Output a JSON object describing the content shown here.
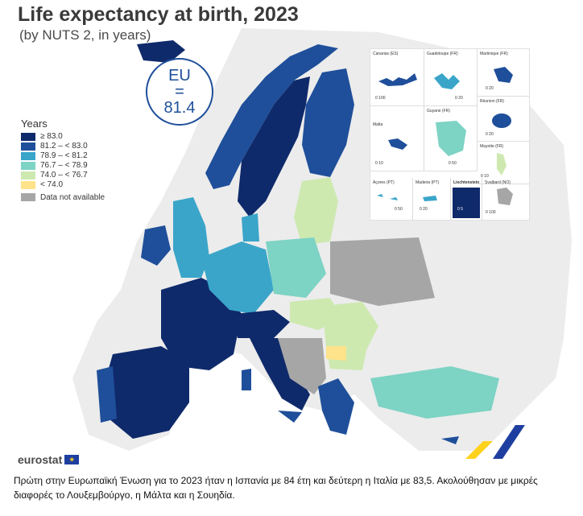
{
  "header": {
    "title": "Life expectancy at birth, 2023",
    "subtitle": "(by NUTS 2, in years)"
  },
  "eu_badge": {
    "label": "EU",
    "symbol": "=",
    "value": "81.4"
  },
  "legend": {
    "title": "Years",
    "items": [
      {
        "label": "≥ 83.0",
        "color": "#0f2a6b"
      },
      {
        "label": "81.2 – < 83.0",
        "color": "#1f4f9a"
      },
      {
        "label": "78.9 – < 81.2",
        "color": "#3aa5c9"
      },
      {
        "label": "76.7 – < 78.9",
        "color": "#7dd3c4"
      },
      {
        "label": "74.0 – < 76.7",
        "color": "#cde9b0"
      },
      {
        "label": "< 74.0",
        "color": "#ffe38a"
      }
    ],
    "na_label": "Data not available",
    "na_color": "#a6a6a6"
  },
  "insets": [
    {
      "label": "Canarias (ES)",
      "scale": "0 100"
    },
    {
      "label": "Guadeloupe (FR)",
      "scale": "0 20"
    },
    {
      "label": "Martinique (FR)",
      "scale": "0 20"
    },
    {
      "label": "Réunion (FR)",
      "scale": "0 20"
    },
    {
      "label": "Malta",
      "scale": "0 10"
    },
    {
      "label": "Guyane (FR)",
      "scale": "0 50"
    },
    {
      "label": "Mayotte (FR)",
      "scale": "0 10"
    },
    {
      "label": "Açores (PT)",
      "scale": "0 50"
    },
    {
      "label": "Madeira (PT)",
      "scale": "0 20"
    },
    {
      "label": "Liechtenstein",
      "scale": "0 5"
    },
    {
      "label": "Svalbard (NO)",
      "scale": "0 100"
    }
  ],
  "footer": {
    "brand": "eurostat",
    "caption": "Πρώτη στην Ευρωπαϊκή Ένωση για το 2023 ήταν η Ισπανία με 84 έτη και δεύτερη η Ιταλία με 83,5. Ακολούθησαν με μικρές διαφορές το Λουξεμβούργο, η Μάλτα και η Σουηδία."
  }
}
